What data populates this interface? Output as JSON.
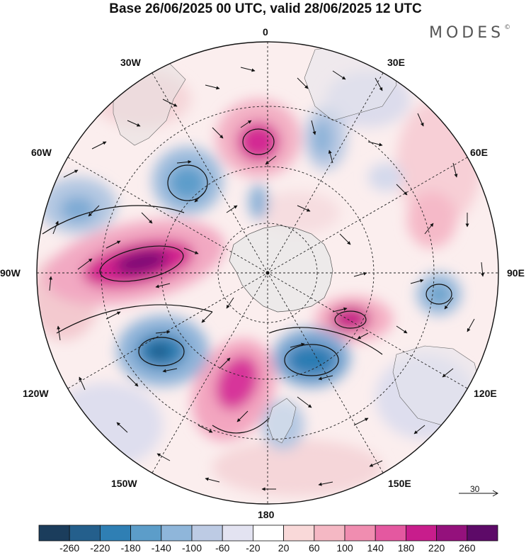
{
  "title": "Base 26/06/2025 00 UTC, valid 28/06/2025 12 UTC",
  "logo": "MODES",
  "logo_mark": "©",
  "meridian_labels": {
    "m0": "0",
    "m30e": "30E",
    "m60e": "60E",
    "m90e": "90E",
    "m120e": "120E",
    "m150e": "150E",
    "m180": "180",
    "m150w": "150W",
    "m120w": "120W",
    "m90w": "90W",
    "m60w": "60W",
    "m30w": "30W"
  },
  "reference_vector": {
    "label": "30"
  },
  "colorbar": {
    "colors": [
      "#1b3d5c",
      "#245f8c",
      "#2f7fb4",
      "#5c9dc9",
      "#8fb6da",
      "#bdcbe4",
      "#e3e3f1",
      "#ffffff",
      "#f9d9d9",
      "#f5b8c4",
      "#f08db0",
      "#e458a0",
      "#c81d8c",
      "#94117c",
      "#5d0a68"
    ],
    "ticks": [
      "-260",
      "-220",
      "-180",
      "-140",
      "-100",
      "-60",
      "-20",
      "20",
      "60",
      "100",
      "140",
      "180",
      "220",
      "260"
    ]
  }
}
